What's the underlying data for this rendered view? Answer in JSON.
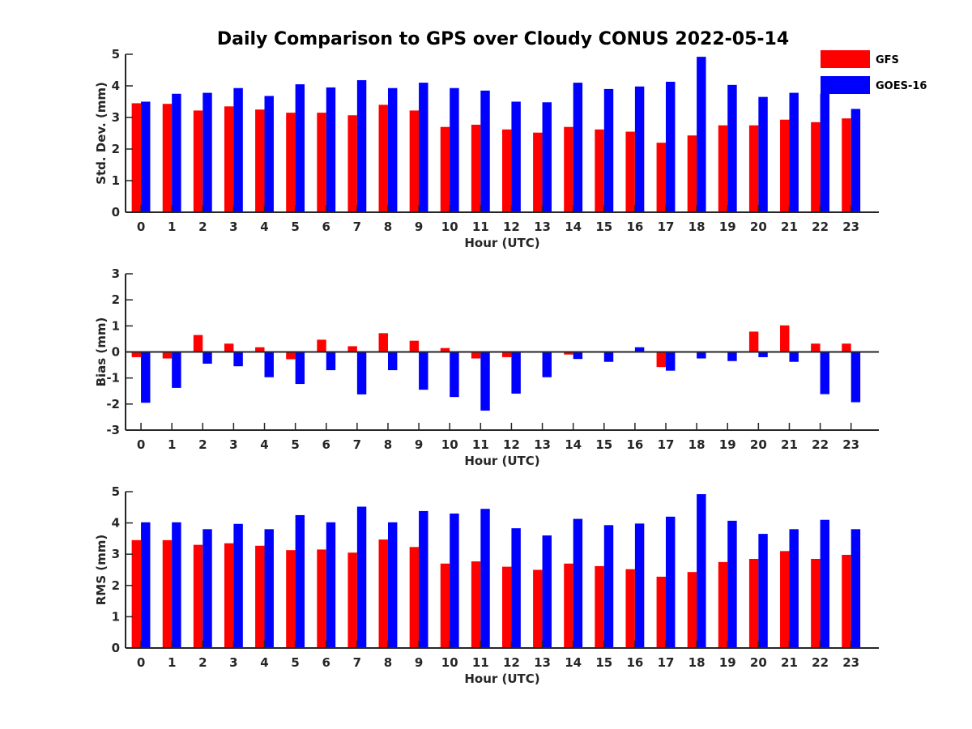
{
  "title": "Daily Comparison to GPS over Cloudy CONUS 2022-05-14",
  "legend": {
    "entries": [
      {
        "name": "GFS",
        "color": "#ff0000"
      },
      {
        "name": "GOES-16",
        "color": "#0000ff"
      }
    ]
  },
  "chart_data": [
    {
      "type": "bar",
      "categories": [
        "0",
        "1",
        "2",
        "3",
        "4",
        "5",
        "6",
        "7",
        "8",
        "9",
        "10",
        "11",
        "12",
        "13",
        "14",
        "15",
        "16",
        "17",
        "18",
        "19",
        "20",
        "21",
        "22",
        "23"
      ],
      "xlabel": "Hour (UTC)",
      "ylabel": "Std. Dev. (mm)",
      "ylim": [
        0,
        5
      ],
      "yticks": [
        "0",
        "1",
        "2",
        "3",
        "4",
        "5"
      ],
      "series": [
        {
          "name": "GFS",
          "color": "#ff0000",
          "values": [
            3.45,
            3.43,
            3.22,
            3.35,
            3.25,
            3.15,
            3.15,
            3.07,
            3.4,
            3.22,
            2.7,
            2.77,
            2.62,
            2.52,
            2.7,
            2.62,
            2.55,
            2.2,
            2.43,
            2.75,
            2.75,
            2.93,
            2.85,
            2.97
          ]
        },
        {
          "name": "GOES-16",
          "color": "#0000ff",
          "values": [
            3.5,
            3.75,
            3.78,
            3.93,
            3.68,
            4.05,
            3.95,
            4.18,
            3.93,
            4.1,
            3.93,
            3.85,
            3.5,
            3.48,
            4.1,
            3.9,
            3.98,
            4.13,
            4.92,
            4.03,
            3.65,
            3.78,
            3.75,
            3.27
          ]
        }
      ]
    },
    {
      "type": "bar",
      "categories": [
        "0",
        "1",
        "2",
        "3",
        "4",
        "5",
        "6",
        "7",
        "8",
        "9",
        "10",
        "11",
        "12",
        "13",
        "14",
        "15",
        "16",
        "17",
        "18",
        "19",
        "20",
        "21",
        "22",
        "23"
      ],
      "xlabel": "Hour (UTC)",
      "ylabel": "Bias (mm)",
      "ylim": [
        -3,
        3
      ],
      "yticks": [
        "-3",
        "-2",
        "-1",
        "0",
        "1",
        "2",
        "3"
      ],
      "series": [
        {
          "name": "GFS",
          "color": "#ff0000",
          "values": [
            -0.2,
            -0.25,
            0.65,
            0.32,
            0.18,
            -0.28,
            0.47,
            0.22,
            0.72,
            0.43,
            0.15,
            -0.25,
            -0.2,
            0.03,
            -0.1,
            0.0,
            -0.03,
            -0.58,
            0.0,
            -0.02,
            0.78,
            1.02,
            0.32,
            0.32
          ]
        },
        {
          "name": "GOES-16",
          "color": "#0000ff",
          "values": [
            -1.95,
            -1.38,
            -0.45,
            -0.55,
            -0.97,
            -1.23,
            -0.7,
            -1.63,
            -0.7,
            -1.45,
            -1.73,
            -2.25,
            -1.6,
            -0.97,
            -0.27,
            -0.38,
            0.18,
            -0.72,
            -0.25,
            -0.35,
            -0.2,
            -0.38,
            -1.62,
            -1.93
          ]
        }
      ]
    },
    {
      "type": "bar",
      "categories": [
        "0",
        "1",
        "2",
        "3",
        "4",
        "5",
        "6",
        "7",
        "8",
        "9",
        "10",
        "11",
        "12",
        "13",
        "14",
        "15",
        "16",
        "17",
        "18",
        "19",
        "20",
        "21",
        "22",
        "23"
      ],
      "xlabel": "Hour (UTC)",
      "ylabel": "RMS (mm)",
      "ylim": [
        0,
        5
      ],
      "yticks": [
        "0",
        "1",
        "2",
        "3",
        "4",
        "5"
      ],
      "series": [
        {
          "name": "GFS",
          "color": "#ff0000",
          "values": [
            3.45,
            3.45,
            3.3,
            3.35,
            3.27,
            3.13,
            3.15,
            3.05,
            3.47,
            3.23,
            2.7,
            2.77,
            2.6,
            2.5,
            2.7,
            2.62,
            2.52,
            2.28,
            2.43,
            2.75,
            2.85,
            3.1,
            2.85,
            2.98
          ]
        },
        {
          "name": "GOES-16",
          "color": "#0000ff",
          "values": [
            4.02,
            4.02,
            3.8,
            3.97,
            3.8,
            4.25,
            4.02,
            4.52,
            4.02,
            4.38,
            4.3,
            4.45,
            3.83,
            3.6,
            4.13,
            3.93,
            3.98,
            4.2,
            4.92,
            4.07,
            3.65,
            3.8,
            4.1,
            3.8
          ]
        }
      ]
    }
  ]
}
